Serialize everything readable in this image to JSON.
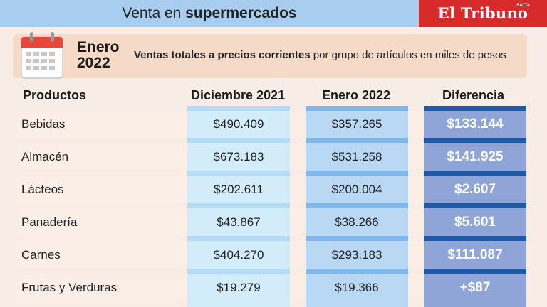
{
  "header": {
    "title_plain": "Venta en ",
    "title_bold": "supermercados",
    "brand": "El Tribuno",
    "brand_small": "SALTA"
  },
  "subheader": {
    "month": "Enero",
    "year": "2022",
    "subtitle_bold": "Ventas totales a precios corrientes",
    "subtitle_rest": " por grupo de artículos en miles de pesos"
  },
  "colors": {
    "topbar": "#a9cdef",
    "brand_red": "#d72a2a",
    "col1": "#d3ecfa",
    "col2": "#b8d8f4",
    "col3": "#8fa5d8",
    "col3_band": "#1f5aa8",
    "calendar_red": "#e8473c"
  },
  "chart_data": {
    "type": "table",
    "columns": [
      "Productos",
      "Diciembre 2021",
      "Enero 2022",
      "Diferencia"
    ],
    "rows": [
      {
        "producto": "Bebidas",
        "dic2021": "$490.409",
        "ene2022": "$357.265",
        "diferencia": "$133.144"
      },
      {
        "producto": "Almacén",
        "dic2021": "$673.183",
        "ene2022": "$531.258",
        "diferencia": "$141.925"
      },
      {
        "producto": "Lácteos",
        "dic2021": "$202.611",
        "ene2022": "$200.004",
        "diferencia": "$2.607"
      },
      {
        "producto": "Panadería",
        "dic2021": "$43.867",
        "ene2022": "$38.266",
        "diferencia": "$5.601"
      },
      {
        "producto": "Carnes",
        "dic2021": "$404.270",
        "ene2022": "$293.183",
        "diferencia": "$111.087"
      },
      {
        "producto": "Frutas y Verduras",
        "dic2021": "$19.279",
        "ene2022": "$19.366",
        "diferencia": "+$87"
      }
    ]
  }
}
